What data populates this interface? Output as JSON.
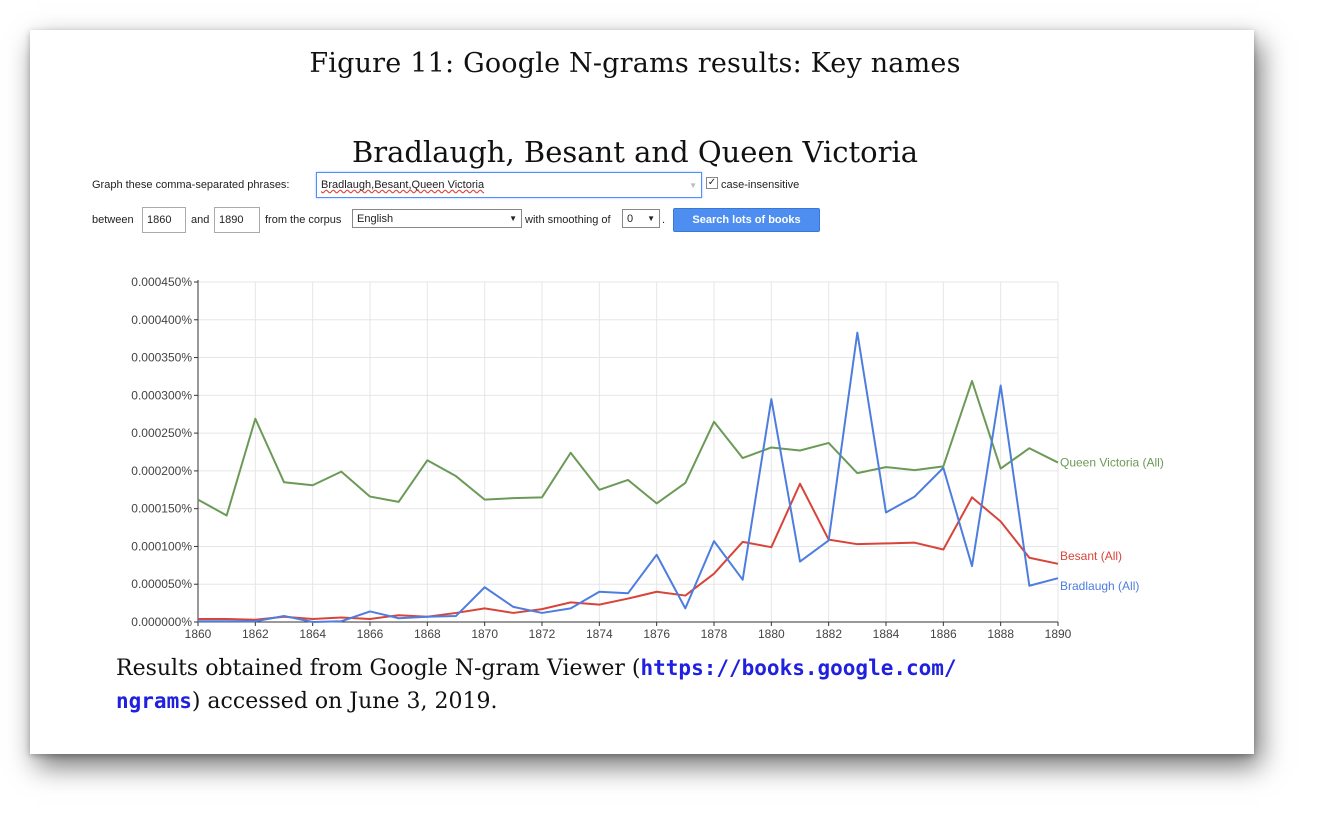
{
  "figure": {
    "title": "Figure 11: Google N-grams results: Key names",
    "heading": "Bradlaugh, Besant and Queen Victoria"
  },
  "form": {
    "phrases_label": "Graph these comma-separated phrases:",
    "phrases_value": "Bradlaugh,Besant,Queen Victoria",
    "case_insensitive_checked": true,
    "case_insensitive_label": "case-insensitive",
    "between_label": "between",
    "start_year": "1860",
    "and_label": "and",
    "end_year": "1890",
    "corpus_label": "from the corpus",
    "corpus_value": "English",
    "smoothing_label": "with smoothing of",
    "smoothing_value": "0",
    "period": ".",
    "search_button": "Search lots of books",
    "dropdown_arrow": "▼"
  },
  "caption": {
    "text_before": "Results obtained from Google N-gram Viewer (",
    "link_line1": "https://books.google.com/",
    "link_line2": "ngrams",
    "text_after": ") accessed on June 3, 2019."
  },
  "chart_data": {
    "type": "line",
    "x": [
      1860,
      1861,
      1862,
      1863,
      1864,
      1865,
      1866,
      1867,
      1868,
      1869,
      1870,
      1871,
      1872,
      1873,
      1874,
      1875,
      1876,
      1877,
      1878,
      1879,
      1880,
      1881,
      1882,
      1883,
      1884,
      1885,
      1886,
      1887,
      1888,
      1889,
      1890
    ],
    "xlim": [
      1860,
      1890
    ],
    "ylim": [
      0,
      0.00045
    ],
    "x_ticks": [
      "1860",
      "1862",
      "1864",
      "1866",
      "1868",
      "1870",
      "1872",
      "1874",
      "1876",
      "1878",
      "1880",
      "1882",
      "1884",
      "1886",
      "1888",
      "1890"
    ],
    "y_ticks": [
      "0.000000%",
      "0.000050%",
      "0.000100%",
      "0.000150%",
      "0.000200%",
      "0.000250%",
      "0.000300%",
      "0.000350%",
      "0.000400%",
      "0.000450%"
    ],
    "grid": true,
    "colors": {
      "queen_victoria": "#6b9a57",
      "besant": "#d9443a",
      "bradlaugh": "#4e7de0"
    },
    "series": [
      {
        "name": "Queen Victoria (All)",
        "color": "#6b9a57",
        "values": [
          0.000162,
          0.000141,
          0.000269,
          0.000185,
          0.000181,
          0.000199,
          0.000166,
          0.000159,
          0.000214,
          0.000193,
          0.000162,
          0.000164,
          0.000165,
          0.000224,
          0.000175,
          0.000188,
          0.000157,
          0.000184,
          0.000265,
          0.000217,
          0.000231,
          0.000227,
          0.000237,
          0.000197,
          0.000205,
          0.000201,
          0.000206,
          0.000319,
          0.000203,
          0.00023,
          0.000211
        ]
      },
      {
        "name": "Besant (All)",
        "color": "#d9443a",
        "values": [
          4e-06,
          4e-06,
          3e-06,
          7e-06,
          4e-06,
          6e-06,
          4e-06,
          9e-06,
          7e-06,
          1.2e-05,
          1.8e-05,
          1.2e-05,
          1.7e-05,
          2.6e-05,
          2.3e-05,
          3.1e-05,
          4e-05,
          3.5e-05,
          6.4e-05,
          0.000106,
          9.9e-05,
          0.000183,
          0.000109,
          0.000103,
          0.000104,
          0.000105,
          9.6e-05,
          0.000165,
          0.000133,
          8.5e-05,
          7.7e-05
        ]
      },
      {
        "name": "Bradlaugh (All)",
        "color": "#4e7de0",
        "values": [
          1e-06,
          1e-06,
          1e-06,
          8e-06,
          0.0,
          1e-06,
          1.4e-05,
          5e-06,
          7e-06,
          8e-06,
          4.6e-05,
          2e-05,
          1.2e-05,
          1.8e-05,
          4e-05,
          3.8e-05,
          8.9e-05,
          1.8e-05,
          0.000107,
          5.6e-05,
          0.000295,
          8e-05,
          0.000108,
          0.000383,
          0.000145,
          0.000166,
          0.000204,
          7.4e-05,
          0.000313,
          4.8e-05,
          5.8e-05
        ]
      }
    ]
  }
}
